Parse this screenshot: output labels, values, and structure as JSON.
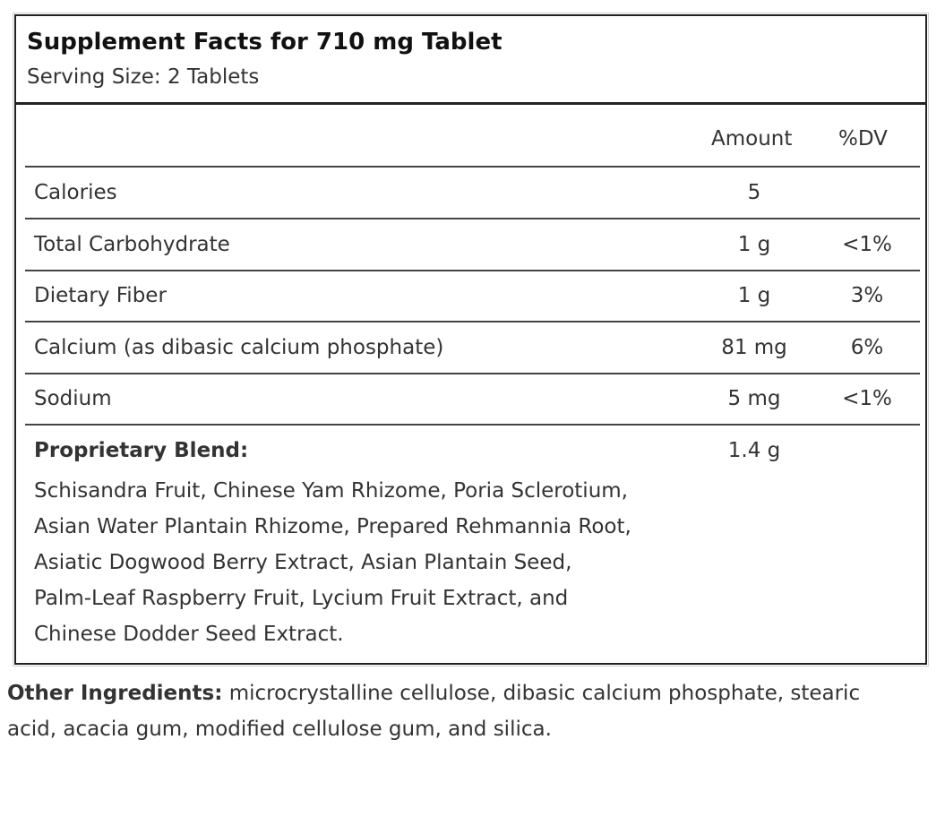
{
  "facts": {
    "title": "Supplement Facts for 710 mg Tablet",
    "serving_size": "Serving Size: 2 Tablets",
    "columns": {
      "amount": "Amount",
      "dv": "%DV"
    },
    "rows": [
      {
        "label": "Calories",
        "amount": "5",
        "dv": ""
      },
      {
        "label": "Total Carbohydrate",
        "amount": "1 g",
        "dv": "<1%"
      },
      {
        "label": "Dietary Fiber",
        "amount": "1 g",
        "dv": "3%"
      },
      {
        "label": "Calcium (as dibasic calcium phosphate)",
        "amount": "81 mg",
        "dv": "6%"
      },
      {
        "label": "Sodium",
        "amount": "5 mg",
        "dv": "<1%"
      }
    ],
    "blend": {
      "label": "Proprietary Blend:",
      "amount": "1.4 g",
      "ingredients_lines": [
        "Schisandra Fruit, Chinese Yam Rhizome, Poria Sclerotium,",
        "Asian Water Plantain Rhizome, Prepared Rehmannia Root,",
        "Asiatic Dogwood Berry Extract, Asian Plantain Seed,",
        "Palm-Leaf Raspberry Fruit, Lycium Fruit Extract, and",
        "Chinese Dodder Seed Extract."
      ]
    }
  },
  "other_ingredients": {
    "label": "Other Ingredients:",
    "text_line1": " microcrystalline cellulose, dibasic calcium phosphate, stearic",
    "text_line2": "acid, acacia gum, modified cellulose gum, and silica."
  }
}
